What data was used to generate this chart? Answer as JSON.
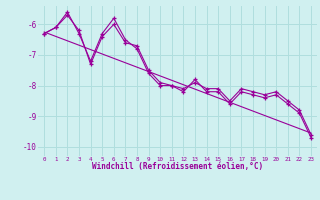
{
  "xlabel": "Windchill (Refroidissement éolien,°C)",
  "bg_color": "#d0f0f0",
  "line_color": "#990099",
  "grid_color": "#b0dede",
  "xlim": [
    -0.5,
    23.5
  ],
  "ylim": [
    -10.3,
    -5.4
  ],
  "yticks": [
    -10,
    -9,
    -8,
    -7,
    -6
  ],
  "xticks": [
    0,
    1,
    2,
    3,
    4,
    5,
    6,
    7,
    8,
    9,
    10,
    11,
    12,
    13,
    14,
    15,
    16,
    17,
    18,
    19,
    20,
    21,
    22,
    23
  ],
  "series1_x": [
    0,
    1,
    2,
    3,
    4,
    5,
    6,
    7,
    8,
    9,
    10,
    11,
    12,
    13,
    14,
    15,
    16,
    17,
    18,
    19,
    20,
    21,
    22,
    23
  ],
  "series1_y": [
    -6.3,
    -6.1,
    -5.6,
    -6.3,
    -7.2,
    -6.3,
    -5.8,
    -6.5,
    -6.8,
    -7.6,
    -8.0,
    -8.0,
    -8.1,
    -7.9,
    -8.1,
    -8.1,
    -8.5,
    -8.1,
    -8.2,
    -8.3,
    -8.2,
    -8.5,
    -8.8,
    -9.6
  ],
  "series2_x": [
    0,
    1,
    2,
    3,
    4,
    5,
    6,
    7,
    8,
    9,
    10,
    11,
    12,
    13,
    14,
    15,
    16,
    17,
    18,
    19,
    20,
    21,
    22,
    23
  ],
  "series2_y": [
    -6.3,
    -6.1,
    -5.7,
    -6.2,
    -7.3,
    -6.4,
    -6.0,
    -6.6,
    -6.7,
    -7.5,
    -7.9,
    -8.0,
    -8.2,
    -7.8,
    -8.2,
    -8.2,
    -8.6,
    -8.2,
    -8.3,
    -8.4,
    -8.3,
    -8.6,
    -8.9,
    -9.7
  ],
  "trend_x": [
    0,
    23
  ],
  "trend_y": [
    -6.25,
    -9.55
  ]
}
